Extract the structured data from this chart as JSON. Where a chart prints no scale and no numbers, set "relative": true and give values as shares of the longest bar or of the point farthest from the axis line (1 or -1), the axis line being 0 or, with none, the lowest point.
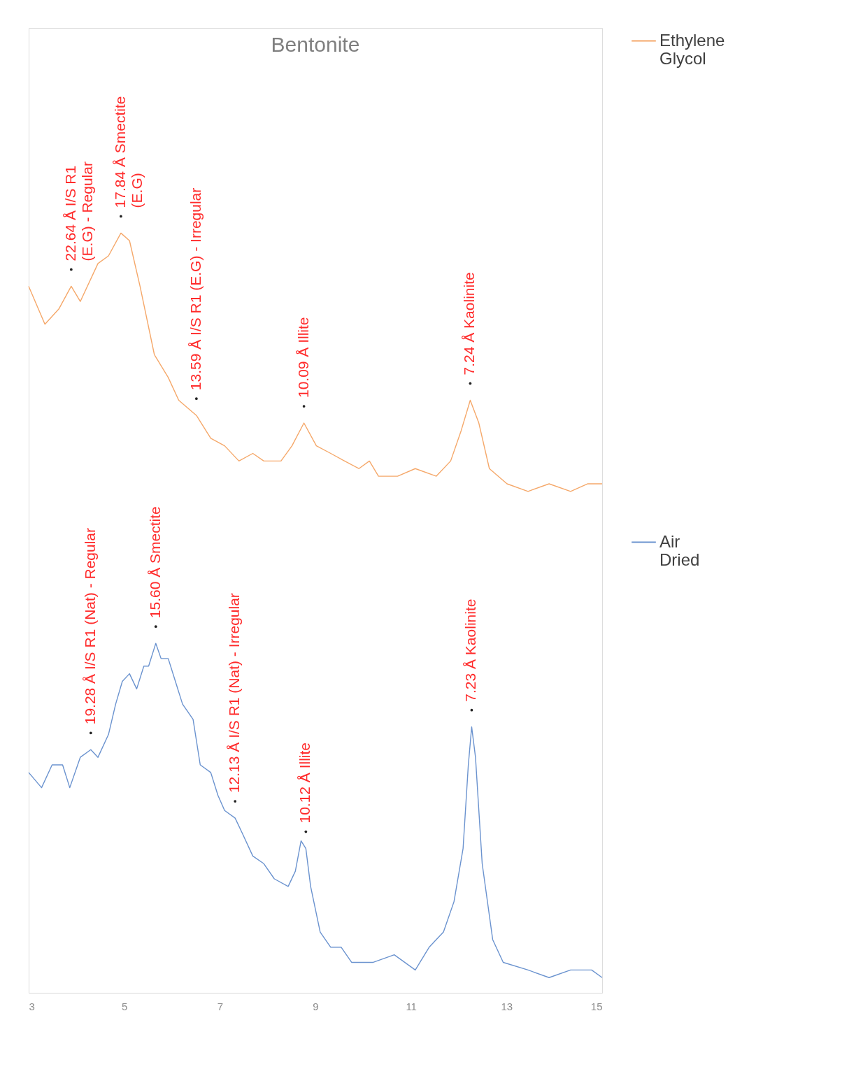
{
  "chart_data": {
    "type": "line",
    "title": "Bentonite",
    "relative": true,
    "xlim": [
      3,
      15
    ],
    "xticks": [
      3,
      5,
      7,
      9,
      11,
      13,
      15
    ],
    "grid": false,
    "legend": "right",
    "marker": "none",
    "line_style": "solid",
    "series": [
      {
        "name": "Ethylene Glycol",
        "color": "#f5a86a",
        "x": [
          3.0,
          3.34,
          3.63,
          3.89,
          4.08,
          4.45,
          4.67,
          4.93,
          5.11,
          5.33,
          5.63,
          5.92,
          6.14,
          6.51,
          6.81,
          7.1,
          7.4,
          7.69,
          7.92,
          8.28,
          8.51,
          8.76,
          9.02,
          9.32,
          9.61,
          9.91,
          10.13,
          10.32,
          10.72,
          11.09,
          11.53,
          11.83,
          12.05,
          12.24,
          12.42,
          12.64,
          13.01,
          13.45,
          13.89,
          14.34,
          14.7,
          15.0
        ],
        "values": [
          0.93,
          0.88,
          0.9,
          0.93,
          0.91,
          0.96,
          0.97,
          1.0,
          0.99,
          0.93,
          0.84,
          0.81,
          0.78,
          0.76,
          0.73,
          0.72,
          0.7,
          0.71,
          0.7,
          0.7,
          0.72,
          0.75,
          0.72,
          0.71,
          0.7,
          0.69,
          0.7,
          0.68,
          0.68,
          0.69,
          0.68,
          0.7,
          0.74,
          0.78,
          0.75,
          0.69,
          0.67,
          0.66,
          0.67,
          0.66,
          0.67,
          0.67
        ]
      },
      {
        "name": "Air Dried",
        "color": "#6b93cf",
        "x": [
          3.0,
          3.27,
          3.49,
          3.71,
          3.86,
          4.08,
          4.3,
          4.45,
          4.67,
          4.82,
          4.96,
          5.11,
          5.26,
          5.41,
          5.51,
          5.66,
          5.77,
          5.92,
          6.07,
          6.22,
          6.44,
          6.59,
          6.81,
          6.96,
          7.1,
          7.32,
          7.47,
          7.69,
          7.92,
          8.14,
          8.43,
          8.58,
          8.7,
          8.8,
          8.9,
          9.1,
          9.32,
          9.54,
          9.76,
          10.2,
          10.65,
          11.09,
          11.38,
          11.68,
          11.9,
          12.09,
          12.2,
          12.27,
          12.35,
          12.49,
          12.71,
          12.93,
          13.45,
          13.89,
          14.34,
          14.78,
          15.0
        ],
        "values": [
          0.29,
          0.27,
          0.3,
          0.3,
          0.27,
          0.31,
          0.32,
          0.31,
          0.34,
          0.38,
          0.41,
          0.42,
          0.4,
          0.43,
          0.43,
          0.46,
          0.44,
          0.44,
          0.41,
          0.38,
          0.36,
          0.3,
          0.29,
          0.26,
          0.24,
          0.23,
          0.21,
          0.18,
          0.17,
          0.15,
          0.14,
          0.16,
          0.2,
          0.19,
          0.14,
          0.08,
          0.06,
          0.06,
          0.04,
          0.04,
          0.05,
          0.03,
          0.06,
          0.08,
          0.12,
          0.19,
          0.3,
          0.35,
          0.31,
          0.17,
          0.07,
          0.04,
          0.03,
          0.02,
          0.03,
          0.03,
          0.02
        ]
      }
    ],
    "annotations": [
      {
        "text": "22.64 Å I/S R1\n(E.G) - Regular",
        "x": 3.89,
        "y": 0.93
      },
      {
        "text": "17.84 Å Smectite\n(E.G)",
        "x": 4.93,
        "y": 1.0
      },
      {
        "text": "13.59 Å I/S R1 (E.G) - Irregular",
        "x": 6.51,
        "y": 0.76
      },
      {
        "text": "10.09 Å Illite",
        "x": 8.76,
        "y": 0.75
      },
      {
        "text": "7.24 Å Kaolinite",
        "x": 12.24,
        "y": 0.78
      },
      {
        "text": "19.28 Å I/S R1 (Nat) - Regular",
        "x": 4.3,
        "y": 0.32
      },
      {
        "text": "15.60 Å Smectite",
        "x": 5.66,
        "y": 0.46
      },
      {
        "text": "12.13 Å I/S R1 (Nat) - Irregular",
        "x": 7.32,
        "y": 0.23
      },
      {
        "text": "10.12 Å Illite",
        "x": 8.8,
        "y": 0.19
      },
      {
        "text": "7.23 Å Kaolinite",
        "x": 12.27,
        "y": 0.35
      }
    ]
  }
}
